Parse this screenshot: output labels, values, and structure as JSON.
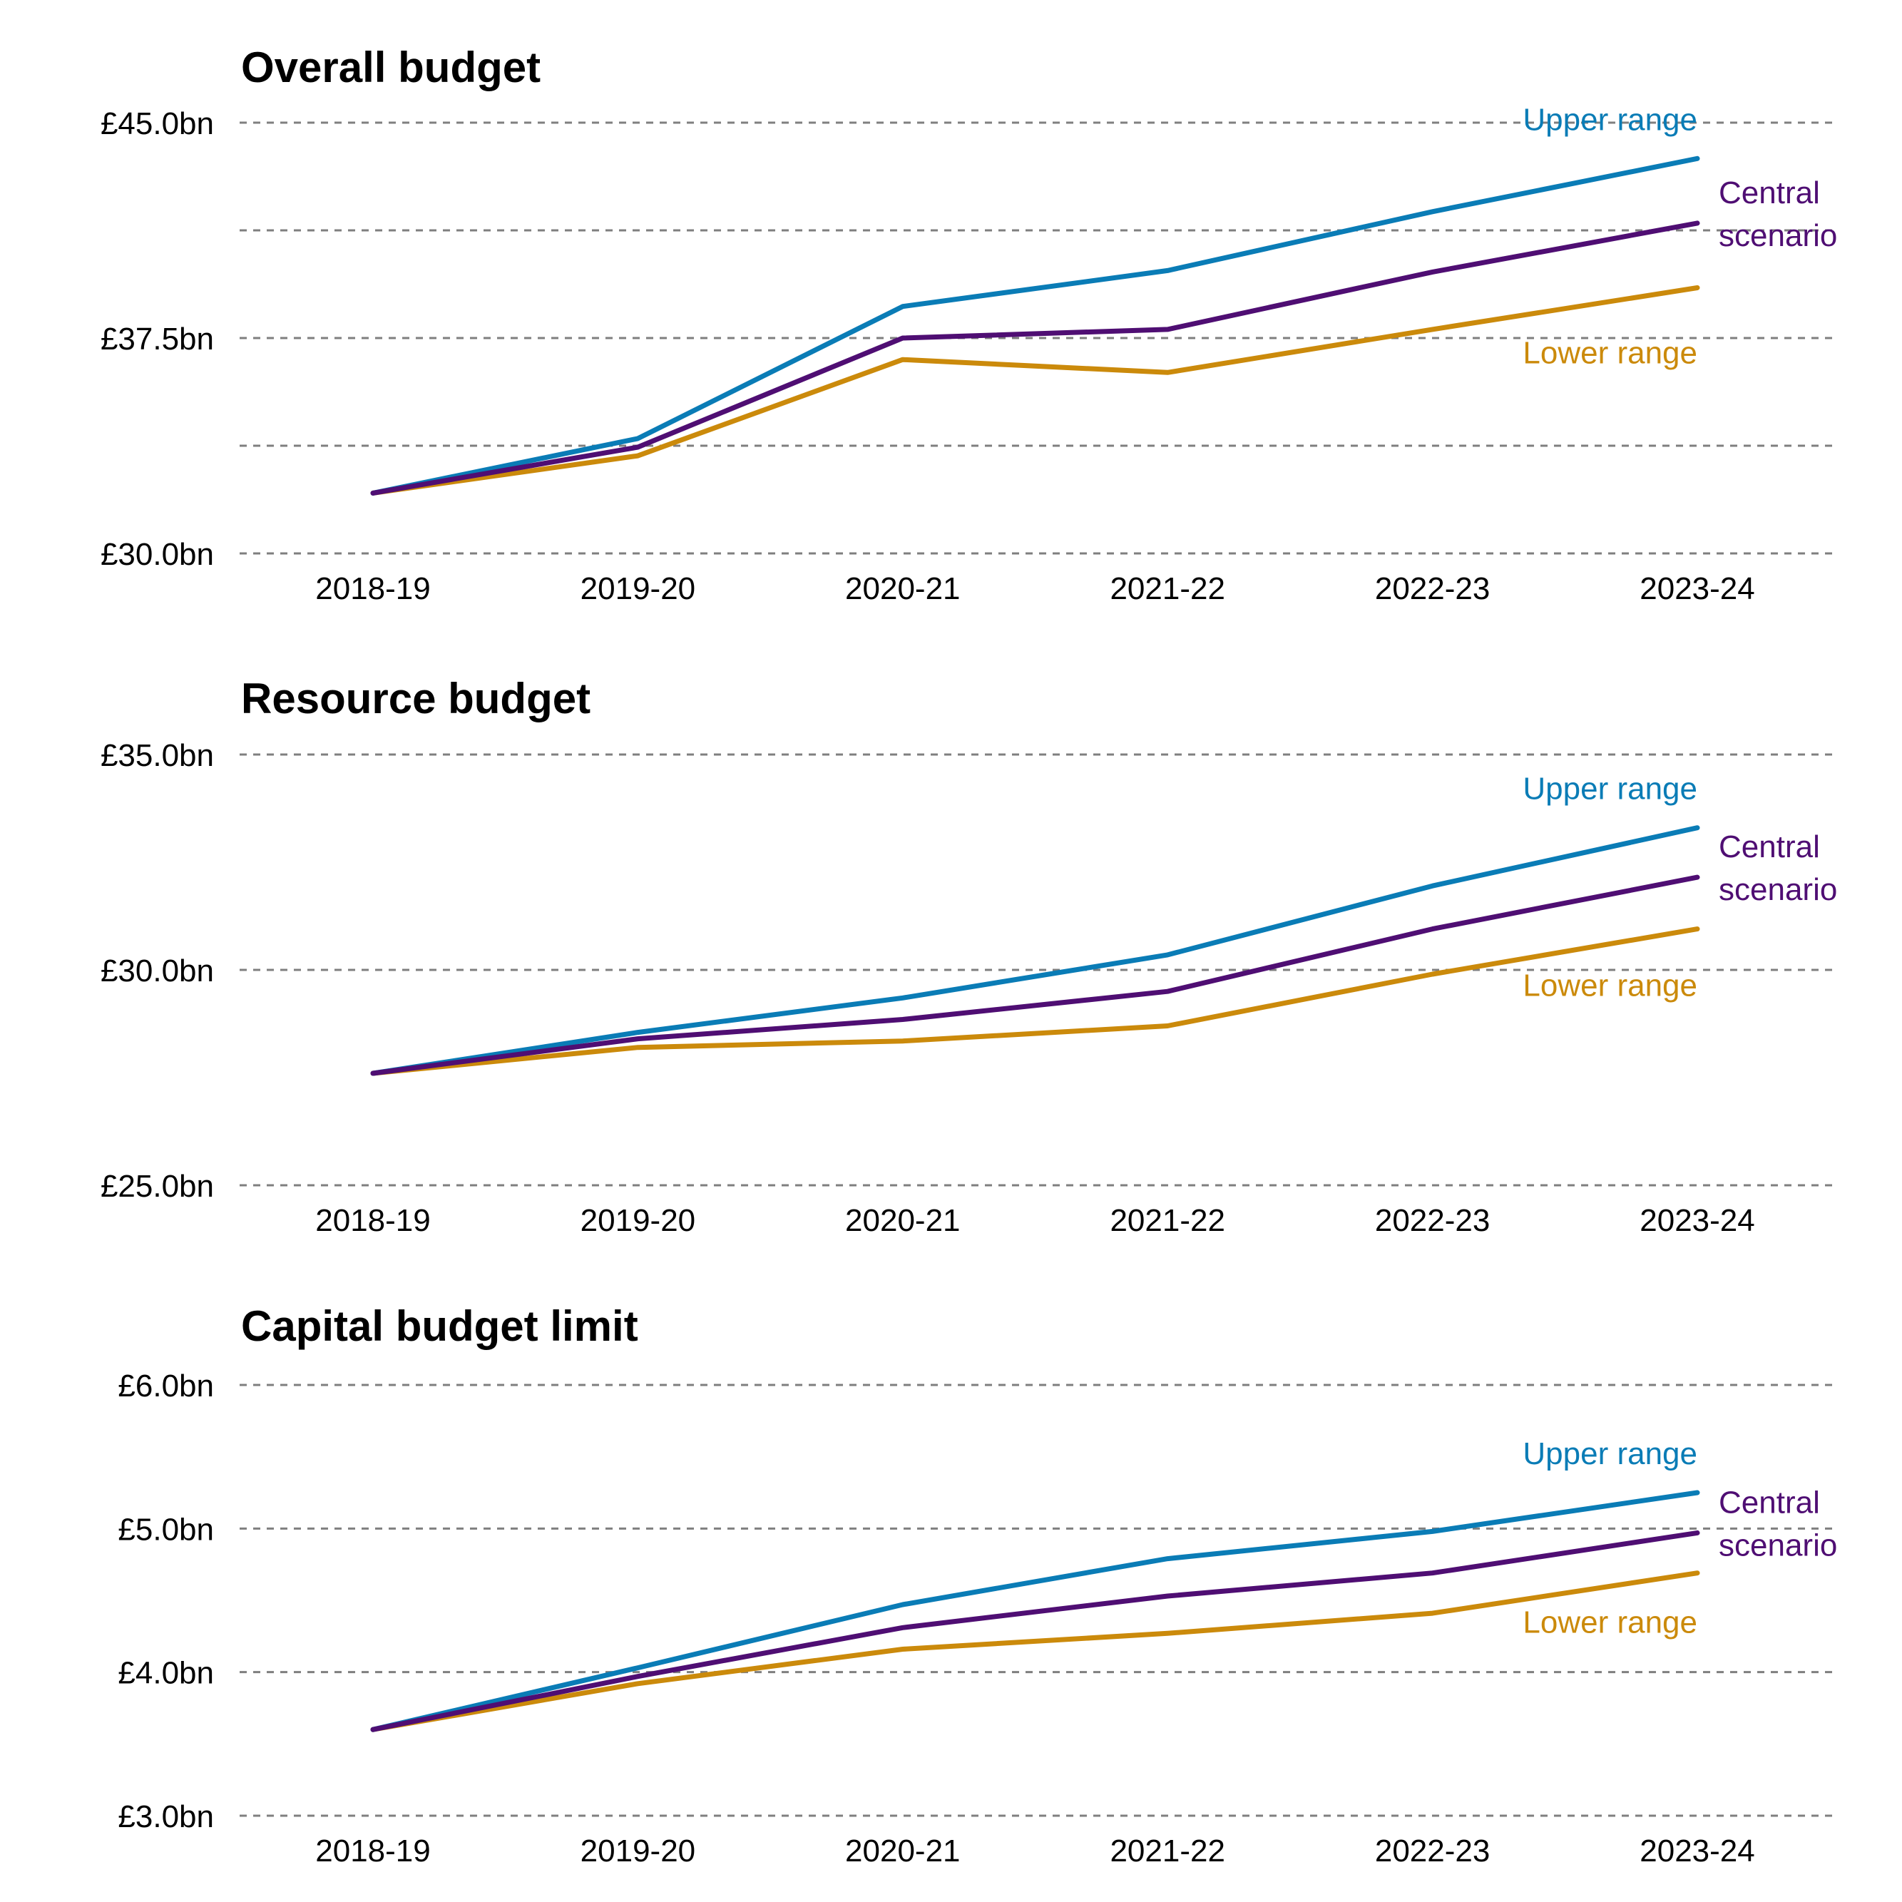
{
  "colors": {
    "upper": "#0a7cb6",
    "central": "#4f0e73",
    "lower": "#cb8a0b"
  },
  "chart_data": [
    {
      "type": "line",
      "title": "Overall budget",
      "categories": [
        "2018-19",
        "2019-20",
        "2020-21",
        "2021-22",
        "2022-23",
        "2023-24"
      ],
      "ylim": [
        30,
        45
      ],
      "yticks": [
        {
          "value": 30,
          "label": "£30.0bn"
        },
        {
          "value": 33.75,
          "label": ""
        },
        {
          "value": 37.5,
          "label": "£37.5bn"
        },
        {
          "value": 41.25,
          "label": ""
        },
        {
          "value": 45,
          "label": "£45.0bn"
        }
      ],
      "grid": true,
      "series": [
        {
          "key": "upper",
          "name": "Upper range",
          "values": [
            32.1,
            34.0,
            38.6,
            39.85,
            41.9,
            43.75
          ]
        },
        {
          "key": "central",
          "name": "Central scenario",
          "values": [
            32.1,
            33.7,
            37.5,
            37.8,
            39.8,
            41.5
          ]
        },
        {
          "key": "lower",
          "name": "Lower range",
          "values": [
            32.1,
            33.4,
            36.75,
            36.3,
            37.8,
            39.25
          ]
        }
      ]
    },
    {
      "type": "line",
      "title": "Resource budget",
      "categories": [
        "2018-19",
        "2019-20",
        "2020-21",
        "2021-22",
        "2022-23",
        "2023-24"
      ],
      "ylim": [
        25,
        35
      ],
      "yticks": [
        {
          "value": 25,
          "label": "£25.0bn"
        },
        {
          "value": 30,
          "label": "£30.0bn"
        },
        {
          "value": 35,
          "label": "£35.0bn"
        }
      ],
      "grid": true,
      "series": [
        {
          "key": "upper",
          "name": "Upper range",
          "values": [
            27.6,
            28.55,
            29.35,
            30.35,
            31.95,
            33.3
          ]
        },
        {
          "key": "central",
          "name": "Central scenario",
          "values": [
            27.6,
            28.4,
            28.85,
            29.5,
            30.95,
            32.15
          ]
        },
        {
          "key": "lower",
          "name": "Lower range",
          "values": [
            27.6,
            28.2,
            28.35,
            28.7,
            29.9,
            30.95
          ]
        }
      ]
    },
    {
      "type": "line",
      "title": "Capital budget limit",
      "categories": [
        "2018-19",
        "2019-20",
        "2020-21",
        "2021-22",
        "2022-23",
        "2023-24"
      ],
      "ylim": [
        3,
        6
      ],
      "yticks": [
        {
          "value": 3,
          "label": "£3.0bn"
        },
        {
          "value": 4,
          "label": "£4.0bn"
        },
        {
          "value": 5,
          "label": "£5.0bn"
        },
        {
          "value": 6,
          "label": "£6.0bn"
        }
      ],
      "grid": true,
      "series": [
        {
          "key": "upper",
          "name": "Upper range",
          "values": [
            3.6,
            4.03,
            4.47,
            4.79,
            4.98,
            5.25
          ]
        },
        {
          "key": "central",
          "name": "Central scenario",
          "values": [
            3.6,
            3.97,
            4.31,
            4.53,
            4.69,
            4.97
          ]
        },
        {
          "key": "lower",
          "name": "Lower range",
          "values": [
            3.6,
            3.92,
            4.16,
            4.27,
            4.41,
            4.69
          ]
        }
      ]
    }
  ]
}
